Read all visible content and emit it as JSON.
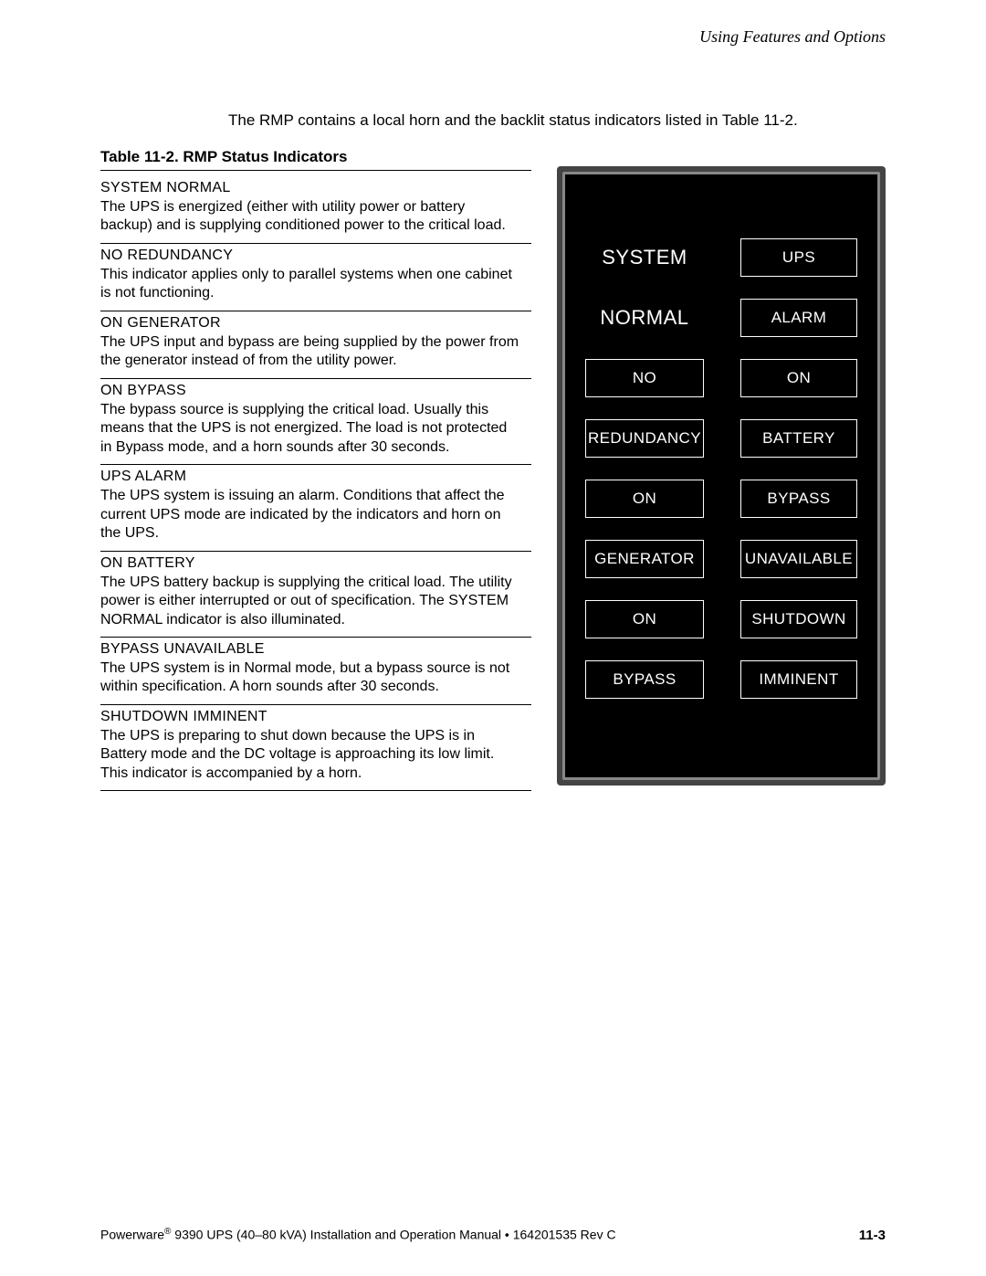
{
  "header": {
    "running_title": "Using Features and Options"
  },
  "intro": "The RMP contains a local horn and the backlit status indicators listed in Table 11-2.",
  "table": {
    "title": "Table 11-2. RMP Status Indicators",
    "entries": [
      {
        "heading": "SYSTEM NORMAL",
        "body": "The UPS is energized (either with utility power or battery backup) and is supplying conditioned power to the critical load."
      },
      {
        "heading": "NO REDUNDANCY",
        "body": "This indicator applies only to parallel systems when one cabinet is not functioning."
      },
      {
        "heading": "ON GENERATOR",
        "body": "The UPS input and bypass are being supplied by the power from the generator instead of from the utility power."
      },
      {
        "heading": "ON BYPASS",
        "body": "The bypass source is supplying the critical load. Usually this means that the UPS is not energized. The load is not protected in Bypass mode, and a horn sounds after 30 seconds."
      },
      {
        "heading": "UPS ALARM",
        "body": "The UPS system is issuing an alarm. Conditions that affect the current UPS mode are indicated by the indicators and horn on the UPS."
      },
      {
        "heading": "ON BATTERY",
        "body": "The UPS battery backup is supplying the critical load. The utility power is either interrupted or out of specification. The SYSTEM NORMAL indicator is also illuminated."
      },
      {
        "heading": "BYPASS UNAVAILABLE",
        "body": "The UPS system is in Normal mode, but a bypass source is not within specification. A horn sounds after 30 seconds."
      },
      {
        "heading": "SHUTDOWN IMMINENT",
        "body": "The UPS is preparing to shut down because the UPS is in Battery mode and the DC voltage is approaching its low limit. This indicator is accompanied by a horn."
      }
    ]
  },
  "panel": {
    "colors": {
      "outer": "#444444",
      "mid": "#888888",
      "face": "#000000",
      "text": "#ffffff",
      "box_border": "#ffffff"
    },
    "cells": [
      {
        "lines": [
          "SYSTEM"
        ],
        "big": true,
        "boxed": false
      },
      {
        "lines": [
          "UPS"
        ],
        "big": false,
        "boxed": true
      },
      {
        "lines": [
          "NORMAL"
        ],
        "big": true,
        "boxed": false
      },
      {
        "lines": [
          "ALARM"
        ],
        "big": false,
        "boxed": true
      },
      {
        "lines": [
          "NO"
        ],
        "big": false,
        "boxed": true
      },
      {
        "lines": [
          "ON"
        ],
        "big": false,
        "boxed": true
      },
      {
        "lines": [
          "REDUNDANCY"
        ],
        "big": false,
        "boxed": true
      },
      {
        "lines": [
          "BATTERY"
        ],
        "big": false,
        "boxed": true
      },
      {
        "lines": [
          "ON"
        ],
        "big": false,
        "boxed": true
      },
      {
        "lines": [
          "BYPASS"
        ],
        "big": false,
        "boxed": true
      },
      {
        "lines": [
          "GENERATOR"
        ],
        "big": false,
        "boxed": true
      },
      {
        "lines": [
          "UNAVAILABLE"
        ],
        "big": false,
        "boxed": true
      },
      {
        "lines": [
          "ON"
        ],
        "big": false,
        "boxed": true
      },
      {
        "lines": [
          "SHUTDOWN"
        ],
        "big": false,
        "boxed": true
      },
      {
        "lines": [
          "BYPASS"
        ],
        "big": false,
        "boxed": true
      },
      {
        "lines": [
          "IMMINENT"
        ],
        "big": false,
        "boxed": true
      }
    ]
  },
  "footer": {
    "left_prefix": "Powerware",
    "left_rest": " 9390 UPS (40–80 kVA) Installation and Operation Manual  •  164201535 Rev C",
    "page": "11-3"
  }
}
